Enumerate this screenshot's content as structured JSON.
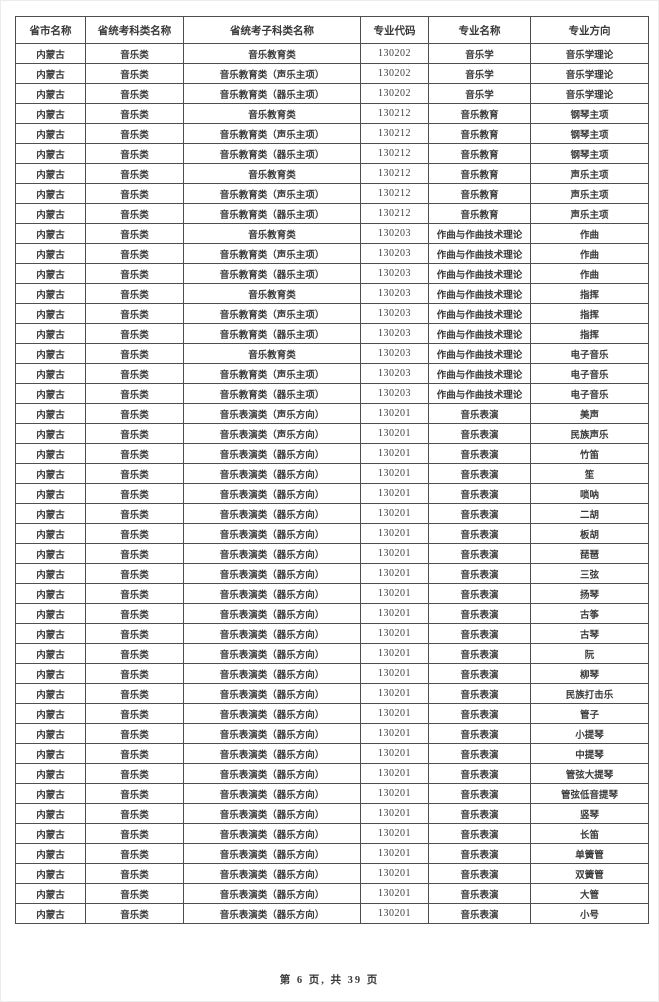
{
  "page": {
    "footer": "第 6 页, 共 39 页"
  },
  "table": {
    "headers": [
      "省市名称",
      "省统考科类名称",
      "省统考子科类名称",
      "专业代码",
      "专业名称",
      "专业方向"
    ],
    "rows": [
      [
        "内蒙古",
        "音乐类",
        "音乐教育类",
        "130202",
        "音乐学",
        "音乐学理论"
      ],
      [
        "内蒙古",
        "音乐类",
        "音乐教育类（声乐主项）",
        "130202",
        "音乐学",
        "音乐学理论"
      ],
      [
        "内蒙古",
        "音乐类",
        "音乐教育类（器乐主项）",
        "130202",
        "音乐学",
        "音乐学理论"
      ],
      [
        "内蒙古",
        "音乐类",
        "音乐教育类",
        "130212",
        "音乐教育",
        "钢琴主项"
      ],
      [
        "内蒙古",
        "音乐类",
        "音乐教育类（声乐主项）",
        "130212",
        "音乐教育",
        "钢琴主项"
      ],
      [
        "内蒙古",
        "音乐类",
        "音乐教育类（器乐主项）",
        "130212",
        "音乐教育",
        "钢琴主项"
      ],
      [
        "内蒙古",
        "音乐类",
        "音乐教育类",
        "130212",
        "音乐教育",
        "声乐主项"
      ],
      [
        "内蒙古",
        "音乐类",
        "音乐教育类（声乐主项）",
        "130212",
        "音乐教育",
        "声乐主项"
      ],
      [
        "内蒙古",
        "音乐类",
        "音乐教育类（器乐主项）",
        "130212",
        "音乐教育",
        "声乐主项"
      ],
      [
        "内蒙古",
        "音乐类",
        "音乐教育类",
        "130203",
        "作曲与作曲技术理论",
        "作曲"
      ],
      [
        "内蒙古",
        "音乐类",
        "音乐教育类（声乐主项）",
        "130203",
        "作曲与作曲技术理论",
        "作曲"
      ],
      [
        "内蒙古",
        "音乐类",
        "音乐教育类（器乐主项）",
        "130203",
        "作曲与作曲技术理论",
        "作曲"
      ],
      [
        "内蒙古",
        "音乐类",
        "音乐教育类",
        "130203",
        "作曲与作曲技术理论",
        "指挥"
      ],
      [
        "内蒙古",
        "音乐类",
        "音乐教育类（声乐主项）",
        "130203",
        "作曲与作曲技术理论",
        "指挥"
      ],
      [
        "内蒙古",
        "音乐类",
        "音乐教育类（器乐主项）",
        "130203",
        "作曲与作曲技术理论",
        "指挥"
      ],
      [
        "内蒙古",
        "音乐类",
        "音乐教育类",
        "130203",
        "作曲与作曲技术理论",
        "电子音乐"
      ],
      [
        "内蒙古",
        "音乐类",
        "音乐教育类（声乐主项）",
        "130203",
        "作曲与作曲技术理论",
        "电子音乐"
      ],
      [
        "内蒙古",
        "音乐类",
        "音乐教育类（器乐主项）",
        "130203",
        "作曲与作曲技术理论",
        "电子音乐"
      ],
      [
        "内蒙古",
        "音乐类",
        "音乐表演类（声乐方向）",
        "130201",
        "音乐表演",
        "美声"
      ],
      [
        "内蒙古",
        "音乐类",
        "音乐表演类（声乐方向）",
        "130201",
        "音乐表演",
        "民族声乐"
      ],
      [
        "内蒙古",
        "音乐类",
        "音乐表演类（器乐方向）",
        "130201",
        "音乐表演",
        "竹笛"
      ],
      [
        "内蒙古",
        "音乐类",
        "音乐表演类（器乐方向）",
        "130201",
        "音乐表演",
        "笙"
      ],
      [
        "内蒙古",
        "音乐类",
        "音乐表演类（器乐方向）",
        "130201",
        "音乐表演",
        "唢呐"
      ],
      [
        "内蒙古",
        "音乐类",
        "音乐表演类（器乐方向）",
        "130201",
        "音乐表演",
        "二胡"
      ],
      [
        "内蒙古",
        "音乐类",
        "音乐表演类（器乐方向）",
        "130201",
        "音乐表演",
        "板胡"
      ],
      [
        "内蒙古",
        "音乐类",
        "音乐表演类（器乐方向）",
        "130201",
        "音乐表演",
        "琵琶"
      ],
      [
        "内蒙古",
        "音乐类",
        "音乐表演类（器乐方向）",
        "130201",
        "音乐表演",
        "三弦"
      ],
      [
        "内蒙古",
        "音乐类",
        "音乐表演类（器乐方向）",
        "130201",
        "音乐表演",
        "扬琴"
      ],
      [
        "内蒙古",
        "音乐类",
        "音乐表演类（器乐方向）",
        "130201",
        "音乐表演",
        "古筝"
      ],
      [
        "内蒙古",
        "音乐类",
        "音乐表演类（器乐方向）",
        "130201",
        "音乐表演",
        "古琴"
      ],
      [
        "内蒙古",
        "音乐类",
        "音乐表演类（器乐方向）",
        "130201",
        "音乐表演",
        "阮"
      ],
      [
        "内蒙古",
        "音乐类",
        "音乐表演类（器乐方向）",
        "130201",
        "音乐表演",
        "柳琴"
      ],
      [
        "内蒙古",
        "音乐类",
        "音乐表演类（器乐方向）",
        "130201",
        "音乐表演",
        "民族打击乐"
      ],
      [
        "内蒙古",
        "音乐类",
        "音乐表演类（器乐方向）",
        "130201",
        "音乐表演",
        "管子"
      ],
      [
        "内蒙古",
        "音乐类",
        "音乐表演类（器乐方向）",
        "130201",
        "音乐表演",
        "小提琴"
      ],
      [
        "内蒙古",
        "音乐类",
        "音乐表演类（器乐方向）",
        "130201",
        "音乐表演",
        "中提琴"
      ],
      [
        "内蒙古",
        "音乐类",
        "音乐表演类（器乐方向）",
        "130201",
        "音乐表演",
        "管弦大提琴"
      ],
      [
        "内蒙古",
        "音乐类",
        "音乐表演类（器乐方向）",
        "130201",
        "音乐表演",
        "管弦低音提琴"
      ],
      [
        "内蒙古",
        "音乐类",
        "音乐表演类（器乐方向）",
        "130201",
        "音乐表演",
        "竖琴"
      ],
      [
        "内蒙古",
        "音乐类",
        "音乐表演类（器乐方向）",
        "130201",
        "音乐表演",
        "长笛"
      ],
      [
        "内蒙古",
        "音乐类",
        "音乐表演类（器乐方向）",
        "130201",
        "音乐表演",
        "单簧管"
      ],
      [
        "内蒙古",
        "音乐类",
        "音乐表演类（器乐方向）",
        "130201",
        "音乐表演",
        "双簧管"
      ],
      [
        "内蒙古",
        "音乐类",
        "音乐表演类（器乐方向）",
        "130201",
        "音乐表演",
        "大管"
      ],
      [
        "内蒙古",
        "音乐类",
        "音乐表演类（器乐方向）",
        "130201",
        "音乐表演",
        "小号"
      ]
    ]
  }
}
